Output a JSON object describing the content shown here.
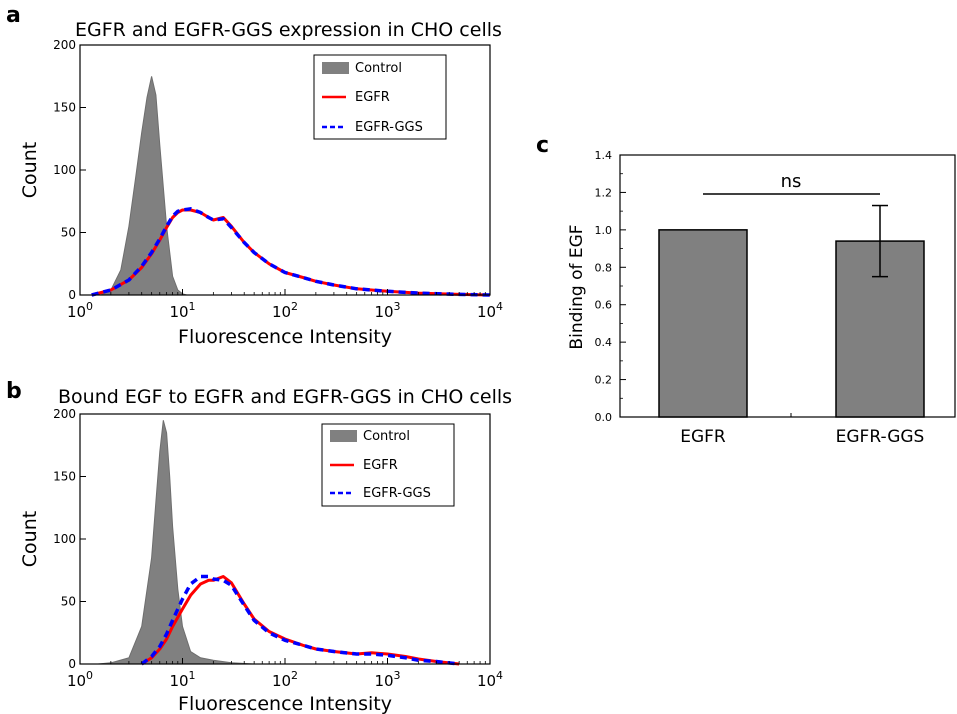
{
  "chart_data": [
    {
      "panel": "a",
      "type": "area",
      "title": "EGFR and EGFR-GGS expression in CHO cells",
      "xlabel": "Fluorescence Intensity",
      "ylabel": "Count",
      "xscale": "log",
      "xlim": [
        1,
        10000
      ],
      "ylim": [
        0,
        200
      ],
      "xticks": [
        1,
        10,
        100,
        1000,
        10000
      ],
      "xtick_labels": [
        {
          "base": "10",
          "exp": "0"
        },
        {
          "base": "10",
          "exp": "1"
        },
        {
          "base": "10",
          "exp": "2"
        },
        {
          "base": "10",
          "exp": "3"
        },
        {
          "base": "10",
          "exp": "4"
        }
      ],
      "yticks": [
        0,
        50,
        100,
        150,
        200
      ],
      "ytick_labels": [
        "0",
        "50",
        "100",
        "150",
        "200"
      ],
      "legend_position": "top-right",
      "series": [
        {
          "name": "Control",
          "style": "filled",
          "color": "#808080",
          "x": [
            1.6,
            2.0,
            2.5,
            3.0,
            3.5,
            4.0,
            4.5,
            5.0,
            5.5,
            6.0,
            7.0,
            8.0,
            9.0,
            10.0,
            11.0
          ],
          "y": [
            0,
            4,
            20,
            55,
            95,
            130,
            158,
            175,
            160,
            120,
            55,
            15,
            4,
            1,
            0
          ]
        },
        {
          "name": "EGFR",
          "style": "solid",
          "color": "#ff0000",
          "x": [
            1.3,
            2.0,
            3.0,
            4.0,
            5.0,
            6.0,
            7.0,
            8.0,
            9.0,
            10.0,
            12.0,
            15.0,
            18.0,
            20.0,
            25.0,
            30.0,
            40.0,
            50.0,
            70.0,
            100.0,
            150.0,
            200.0,
            300.0,
            500.0,
            700.0,
            1000.0,
            2000.0,
            5000.0,
            10000.0
          ],
          "y": [
            0,
            4,
            12,
            22,
            33,
            44,
            54,
            62,
            66,
            68,
            68,
            66,
            62,
            60,
            62,
            55,
            42,
            34,
            25,
            18,
            14,
            11,
            8,
            5,
            4,
            3,
            1.5,
            0.5,
            0
          ]
        },
        {
          "name": "EGFR-GGS",
          "style": "dashed",
          "color": "#0000ff",
          "x": [
            1.3,
            2.0,
            3.0,
            4.0,
            5.0,
            6.0,
            7.0,
            8.0,
            9.0,
            10.0,
            12.0,
            15.0,
            18.0,
            20.0,
            25.0,
            30.0,
            40.0,
            50.0,
            70.0,
            100.0,
            150.0,
            200.0,
            300.0,
            500.0,
            700.0,
            1000.0,
            2000.0,
            5000.0,
            10000.0
          ],
          "y": [
            0,
            4,
            12,
            23,
            34,
            45,
            55,
            63,
            67,
            68,
            69,
            66,
            62,
            60,
            61,
            54,
            42,
            34,
            25,
            18,
            14,
            11,
            8,
            5,
            4,
            3,
            1.5,
            0.5,
            0
          ]
        }
      ]
    },
    {
      "panel": "b",
      "type": "area",
      "title": "Bound EGF to EGFR and EGFR-GGS in CHO cells",
      "xlabel": "Fluorescence Intensity",
      "ylabel": "Count",
      "xscale": "log",
      "xlim": [
        1,
        10000
      ],
      "ylim": [
        0,
        200
      ],
      "xticks": [
        1,
        10,
        100,
        1000,
        10000
      ],
      "xtick_labels": [
        {
          "base": "10",
          "exp": "0"
        },
        {
          "base": "10",
          "exp": "1"
        },
        {
          "base": "10",
          "exp": "2"
        },
        {
          "base": "10",
          "exp": "3"
        },
        {
          "base": "10",
          "exp": "4"
        }
      ],
      "yticks": [
        0,
        50,
        100,
        150,
        200
      ],
      "ytick_labels": [
        "0",
        "50",
        "100",
        "150",
        "200"
      ],
      "legend_position": "top-right",
      "series": [
        {
          "name": "Control",
          "style": "filled",
          "color": "#808080",
          "x": [
            1.5,
            2.0,
            3.0,
            4.0,
            5.0,
            5.5,
            6.0,
            6.5,
            7.0,
            7.5,
            8.0,
            9.0,
            10.0,
            12.0,
            15.0,
            20.0,
            30.0,
            50.0
          ],
          "y": [
            0,
            1,
            5,
            30,
            85,
            130,
            170,
            195,
            185,
            150,
            110,
            60,
            30,
            10,
            5,
            3,
            1,
            0
          ]
        },
        {
          "name": "EGFR",
          "style": "solid",
          "color": "#ff0000",
          "x": [
            4.0,
            5.0,
            6.0,
            7.0,
            8.0,
            10.0,
            12.0,
            15.0,
            18.0,
            20.0,
            25.0,
            30.0,
            40.0,
            50.0,
            70.0,
            100.0,
            150.0,
            200.0,
            300.0,
            500.0,
            700.0,
            1000.0,
            1500.0,
            2000.0,
            3000.0,
            5000.0
          ],
          "y": [
            0,
            5,
            12,
            20,
            30,
            44,
            55,
            64,
            67,
            67,
            70,
            65,
            48,
            36,
            26,
            20,
            15,
            12,
            10,
            8,
            9,
            8,
            6,
            4,
            2,
            0
          ]
        },
        {
          "name": "EGFR-GGS",
          "style": "dashed",
          "color": "#0000ff",
          "x": [
            4.0,
            5.0,
            6.0,
            7.0,
            8.0,
            10.0,
            12.0,
            15.0,
            18.0,
            20.0,
            25.0,
            30.0,
            40.0,
            50.0,
            70.0,
            100.0,
            150.0,
            200.0,
            300.0,
            500.0,
            700.0,
            1000.0,
            1500.0,
            2000.0,
            3000.0,
            5000.0
          ],
          "y": [
            0,
            6,
            14,
            24,
            35,
            52,
            64,
            70,
            70,
            68,
            67,
            63,
            47,
            35,
            25,
            19,
            15,
            12,
            10,
            8,
            8,
            7,
            5,
            3,
            2,
            0
          ]
        }
      ]
    },
    {
      "panel": "c",
      "type": "bar",
      "title": "",
      "xlabel": "",
      "ylabel": "Binding of EGF",
      "categories": [
        "EGFR",
        "EGFR-GGS"
      ],
      "values": [
        1.0,
        0.94
      ],
      "error": [
        0.0,
        0.19
      ],
      "ylim": [
        0.0,
        1.4
      ],
      "yticks": [
        0.0,
        0.2,
        0.4,
        0.6,
        0.8,
        1.0,
        1.2,
        1.4
      ],
      "ytick_labels": [
        "0.0",
        "0.2",
        "0.4",
        "0.6",
        "0.8",
        "1.0",
        "1.2",
        "1.4"
      ],
      "bar_color": "#808080",
      "annotation": "ns"
    }
  ],
  "panel_labels": {
    "a": "a",
    "b": "b",
    "c": "c"
  },
  "legend": [
    "Control",
    "EGFR",
    "EGFR-GGS"
  ]
}
